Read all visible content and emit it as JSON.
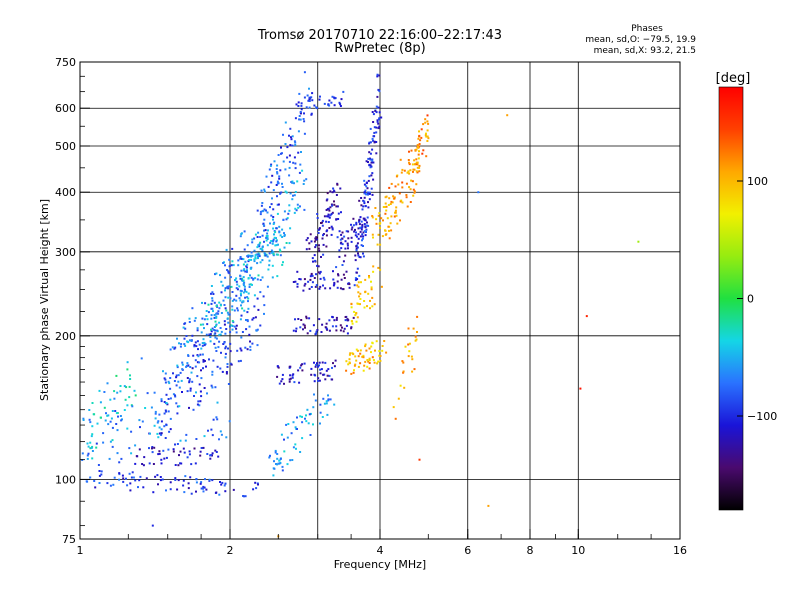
{
  "chart_data": {
    "type": "scatter",
    "title": "Tromsø 20170710 22:16:00–22:17:43",
    "subtitle": "RwPretec (8p)",
    "xlabel": "Frequency [MHz]",
    "ylabel": "Stationary phase Virtual Height [km]",
    "x_scale": "log2",
    "y_scale": "log",
    "xlim": [
      1,
      16
    ],
    "ylim": [
      75,
      750
    ],
    "x_ticks": [
      1,
      2,
      4,
      6,
      8,
      10,
      16
    ],
    "x_tick_labels": [
      "1",
      "2",
      "4",
      "6",
      "8",
      "10",
      "16"
    ],
    "x_grid": [
      1,
      2,
      3,
      4,
      6,
      8,
      10,
      16
    ],
    "y_ticks": [
      75,
      100,
      200,
      300,
      400,
      500,
      600,
      750
    ],
    "y_tick_labels": [
      "75",
      "100",
      "200",
      "300",
      "400",
      "500",
      "600",
      "750"
    ],
    "y_grid": [
      100,
      200,
      300,
      400,
      500,
      600
    ],
    "grid": true,
    "stats": {
      "header": "Phases",
      "line_o": "mean, sd,O: −79.5, 19.9",
      "line_x": "mean, sd,X:  93.2, 21.5"
    },
    "colorbar": {
      "label": "[deg]",
      "range": [
        -180,
        180
      ],
      "ticks": [
        100,
        0,
        -100
      ],
      "tick_labels": [
        "100",
        "0",
        "−100"
      ],
      "colors": [
        "#000000",
        "#4a0a6e",
        "#1a14d8",
        "#2a72ff",
        "#14d6e6",
        "#20e040",
        "#96ec10",
        "#f2f000",
        "#ffa800",
        "#ff4000",
        "#ff0000"
      ]
    },
    "series": [
      {
        "mode": "O",
        "phase_mean": -79.5,
        "traces": [
          {
            "x": [
              1.0,
              2.3
            ],
            "y": [
              100,
              96
            ],
            "jx": 0.02,
            "jy": 0.02,
            "n": 90,
            "phase": -95
          },
          {
            "x": [
              1.0,
              1.3
            ],
            "y": [
              118,
              160
            ],
            "jx": 0.04,
            "jy": 0.06,
            "n": 60,
            "phase": -40
          },
          {
            "x": [
              1.3,
              1.9
            ],
            "y": [
              112,
              112
            ],
            "jx": 0.02,
            "jy": 0.02,
            "n": 50,
            "phase": -110
          },
          {
            "x": [
              1.4,
              2.3
            ],
            "y": [
              135,
              220
            ],
            "jx": 0.05,
            "jy": 0.06,
            "n": 170,
            "phase": -90
          },
          {
            "x": [
              1.5,
              2.2
            ],
            "y": [
              165,
              300
            ],
            "jx": 0.05,
            "jy": 0.06,
            "n": 150,
            "phase": -70
          },
          {
            "x": [
              1.8,
              2.6
            ],
            "y": [
              200,
              330
            ],
            "jx": 0.05,
            "jy": 0.05,
            "n": 140,
            "phase": -50
          },
          {
            "x": [
              2.0,
              2.8
            ],
            "y": [
              250,
              420
            ],
            "jx": 0.05,
            "jy": 0.05,
            "n": 140,
            "phase": -60
          },
          {
            "x": [
              2.3,
              2.9
            ],
            "y": [
              350,
              640
            ],
            "jx": 0.04,
            "jy": 0.05,
            "n": 100,
            "phase": -85
          },
          {
            "x": [
              2.4,
              3.2
            ],
            "y": [
              108,
              150
            ],
            "jx": 0.03,
            "jy": 0.04,
            "n": 70,
            "phase": -60
          },
          {
            "x": [
              2.5,
              3.3
            ],
            "y": [
              165,
              170
            ],
            "jx": 0.02,
            "jy": 0.02,
            "n": 60,
            "phase": -110
          },
          {
            "x": [
              2.7,
              3.5
            ],
            "y": [
              210,
              212
            ],
            "jx": 0.02,
            "jy": 0.02,
            "n": 55,
            "phase": -115
          },
          {
            "x": [
              2.7,
              3.5
            ],
            "y": [
              260,
              262
            ],
            "jx": 0.02,
            "jy": 0.02,
            "n": 55,
            "phase": -115
          },
          {
            "x": [
              2.9,
              3.3
            ],
            "y": [
              290,
              400
            ],
            "jx": 0.03,
            "jy": 0.04,
            "n": 90,
            "phase": -120
          },
          {
            "x": [
              3.3,
              3.8
            ],
            "y": [
              300,
              370
            ],
            "jx": 0.03,
            "jy": 0.04,
            "n": 70,
            "phase": -110
          },
          {
            "x": [
              3.6,
              4.0
            ],
            "y": [
              280,
              640
            ],
            "jx": 0.02,
            "jy": 0.05,
            "n": 130,
            "phase": -100
          },
          {
            "x": [
              2.8,
              3.3
            ],
            "y": [
              600,
              625
            ],
            "jx": 0.04,
            "jy": 0.02,
            "n": 30,
            "phase": -100
          },
          {
            "x": [
              1.0,
              2.0
            ],
            "y": [
              120,
              140
            ],
            "jx": 0.05,
            "jy": 0.06,
            "n": 80,
            "phase": -65
          }
        ]
      },
      {
        "mode": "X",
        "phase_mean": 93.2,
        "traces": [
          {
            "x": [
              3.4,
              4.1
            ],
            "y": [
              175,
              185
            ],
            "jx": 0.03,
            "jy": 0.03,
            "n": 60,
            "phase": 100
          },
          {
            "x": [
              3.5,
              4.0
            ],
            "y": [
              230,
              260
            ],
            "jx": 0.03,
            "jy": 0.04,
            "n": 45,
            "phase": 95
          },
          {
            "x": [
              3.9,
              4.9
            ],
            "y": [
              320,
              500
            ],
            "jx": 0.03,
            "jy": 0.05,
            "n": 110,
            "phase": 110
          },
          {
            "x": [
              4.6,
              5.0
            ],
            "y": [
              400,
              560
            ],
            "jx": 0.02,
            "jy": 0.04,
            "n": 40,
            "phase": 120
          },
          {
            "x": [
              4.3,
              4.8
            ],
            "y": [
              150,
              210
            ],
            "jx": 0.04,
            "jy": 0.05,
            "n": 25,
            "phase": 105
          }
        ]
      },
      {
        "mode": "isolated",
        "points": [
          {
            "x": 6.3,
            "y": 400,
            "phase": -70
          },
          {
            "x": 6.6,
            "y": 88,
            "phase": 110
          },
          {
            "x": 7.2,
            "y": 580,
            "phase": 110
          },
          {
            "x": 10.4,
            "y": 220,
            "phase": 160
          },
          {
            "x": 10.1,
            "y": 155,
            "phase": 170
          },
          {
            "x": 13.2,
            "y": 315,
            "phase": 40
          },
          {
            "x": 1.4,
            "y": 80,
            "phase": -100
          },
          {
            "x": 2.5,
            "y": 76,
            "phase": 110
          },
          {
            "x": 4.8,
            "y": 110,
            "phase": 150
          }
        ]
      }
    ]
  }
}
